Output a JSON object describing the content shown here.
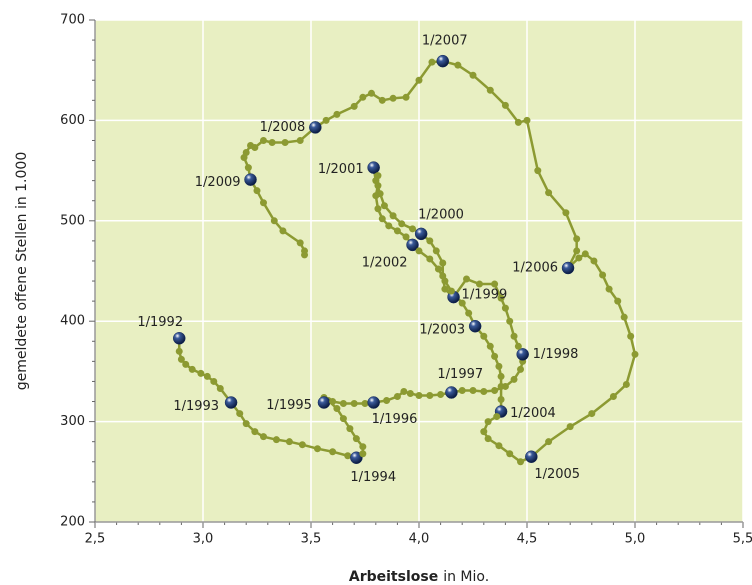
{
  "chart_data": {
    "type": "scatter",
    "xlabel_bold": "Arbeitslose",
    "xlabel_rest": "in Mio.",
    "ylabel": "gemeldete offene Stellen in 1.000",
    "xlim": [
      2.5,
      5.5
    ],
    "ylim": [
      200,
      700
    ],
    "xticks": [
      {
        "value": 2.5,
        "label": "2,5"
      },
      {
        "value": 3.0,
        "label": "3,0"
      },
      {
        "value": 3.5,
        "label": "3,5"
      },
      {
        "value": 4.0,
        "label": "4,0"
      },
      {
        "value": 4.5,
        "label": "4,5"
      },
      {
        "value": 5.0,
        "label": "5,0"
      },
      {
        "value": 5.5,
        "label": "5,5"
      }
    ],
    "yticks": [
      200,
      300,
      400,
      500,
      600,
      700
    ],
    "grid": true,
    "color": "#8c9a32",
    "highlight_color": "#14295a",
    "background": "#e8efc2",
    "x": [
      2.89,
      2.89,
      2.9,
      2.92,
      2.95,
      2.99,
      3.02,
      3.05,
      3.08,
      3.13,
      3.17,
      3.2,
      3.24,
      3.28,
      3.34,
      3.4,
      3.46,
      3.53,
      3.6,
      3.67,
      3.71,
      3.74,
      3.74,
      3.71,
      3.68,
      3.65,
      3.62,
      3.58,
      3.56,
      3.56,
      3.6,
      3.65,
      3.7,
      3.75,
      3.79,
      3.85,
      3.9,
      3.93,
      3.96,
      4.0,
      4.05,
      4.1,
      4.15,
      4.2,
      4.25,
      4.3,
      4.35,
      4.4,
      4.44,
      4.47,
      4.48,
      4.48,
      4.46,
      4.44,
      4.42,
      4.4,
      4.38,
      4.35,
      4.28,
      4.22,
      4.16,
      4.12,
      4.11,
      4.11,
      4.08,
      4.05,
      4.01,
      3.97,
      3.92,
      3.88,
      3.84,
      3.82,
      3.8,
      3.79,
      3.81,
      3.81,
      3.8,
      3.81,
      3.83,
      3.86,
      3.9,
      3.94,
      3.97,
      4.0,
      4.05,
      4.09,
      4.12,
      4.15,
      4.2,
      4.23,
      4.26,
      4.3,
      4.33,
      4.35,
      4.37,
      4.38,
      4.38,
      4.38,
      4.38,
      4.36,
      4.32,
      4.3,
      4.32,
      4.37,
      4.42,
      4.47,
      4.52,
      4.6,
      4.7,
      4.8,
      4.9,
      4.96,
      5.0,
      4.98,
      4.95,
      4.92,
      4.88,
      4.85,
      4.81,
      4.77,
      4.74,
      4.69,
      4.73,
      4.73,
      4.68,
      4.6,
      4.55,
      4.5,
      4.46,
      4.4,
      4.33,
      4.25,
      4.18,
      4.11,
      4.06,
      4.0,
      3.94,
      3.88,
      3.83,
      3.78,
      3.74,
      3.7,
      3.62,
      3.57,
      3.52,
      3.45,
      3.38,
      3.32,
      3.28,
      3.24,
      3.22,
      3.2,
      3.19,
      3.21,
      3.22,
      3.25,
      3.28,
      3.33,
      3.37,
      3.45,
      3.47,
      3.47
    ],
    "values": [
      383,
      370,
      362,
      357,
      352,
      348,
      345,
      340,
      333,
      319,
      308,
      298,
      290,
      285,
      282,
      280,
      277,
      273,
      270,
      266,
      264,
      268,
      275,
      283,
      293,
      303,
      313,
      321,
      324,
      319,
      320,
      318,
      318,
      318,
      319,
      321,
      325,
      330,
      328,
      326,
      326,
      327,
      329,
      331,
      331,
      330,
      331,
      335,
      342,
      352,
      360,
      367,
      375,
      385,
      400,
      413,
      423,
      437,
      437,
      442,
      424,
      432,
      445,
      458,
      470,
      480,
      487,
      492,
      497,
      505,
      515,
      527,
      540,
      553,
      545,
      535,
      525,
      512,
      502,
      495,
      490,
      484,
      476,
      470,
      462,
      452,
      440,
      430,
      418,
      408,
      395,
      385,
      375,
      365,
      355,
      345,
      335,
      322,
      310,
      305,
      300,
      290,
      283,
      276,
      268,
      260,
      265,
      280,
      295,
      308,
      325,
      337,
      367,
      385,
      404,
      420,
      432,
      446,
      460,
      467,
      463,
      453,
      470,
      482,
      508,
      528,
      550,
      600,
      598,
      615,
      630,
      645,
      655,
      659,
      658,
      640,
      623,
      622,
      620,
      627,
      623,
      614,
      606,
      600,
      593,
      580,
      578,
      578,
      580,
      573,
      575,
      568,
      563,
      553,
      541,
      530,
      518,
      500,
      490,
      478,
      470,
      466
    ],
    "point_labels": [
      "1/1992",
      null,
      null,
      null,
      null,
      null,
      null,
      null,
      null,
      "1/1993",
      null,
      null,
      null,
      null,
      null,
      null,
      null,
      null,
      null,
      null,
      "1/1994",
      null,
      null,
      null,
      null,
      null,
      null,
      null,
      null,
      "1/1995",
      null,
      null,
      null,
      null,
      "1/1996",
      null,
      null,
      null,
      null,
      null,
      null,
      null,
      "1/1997",
      null,
      null,
      null,
      null,
      null,
      null,
      null,
      null,
      "1/1998",
      null,
      null,
      null,
      null,
      null,
      null,
      null,
      null,
      "1/1999",
      null,
      null,
      null,
      null,
      null,
      "1/2000",
      null,
      null,
      null,
      null,
      null,
      null,
      "1/2001",
      null,
      null,
      null,
      null,
      null,
      null,
      null,
      null,
      "1/2002",
      null,
      null,
      null,
      null,
      null,
      null,
      null,
      "1/2003",
      null,
      null,
      null,
      null,
      null,
      null,
      null,
      "1/2004",
      null,
      null,
      null,
      null,
      null,
      null,
      null,
      "1/2005",
      null,
      null,
      null,
      null,
      null,
      null,
      null,
      null,
      null,
      null,
      null,
      null,
      null,
      null,
      "1/2006",
      null,
      null,
      null,
      null,
      null,
      null,
      null,
      null,
      null,
      null,
      null,
      "1/2007",
      null,
      null,
      null,
      null,
      null,
      null,
      null,
      null,
      null,
      null,
      "1/2008",
      null,
      null,
      null,
      null,
      null,
      null,
      null,
      null,
      null,
      "1/2009",
      null,
      null,
      null,
      null,
      null,
      null,
      null
    ]
  }
}
